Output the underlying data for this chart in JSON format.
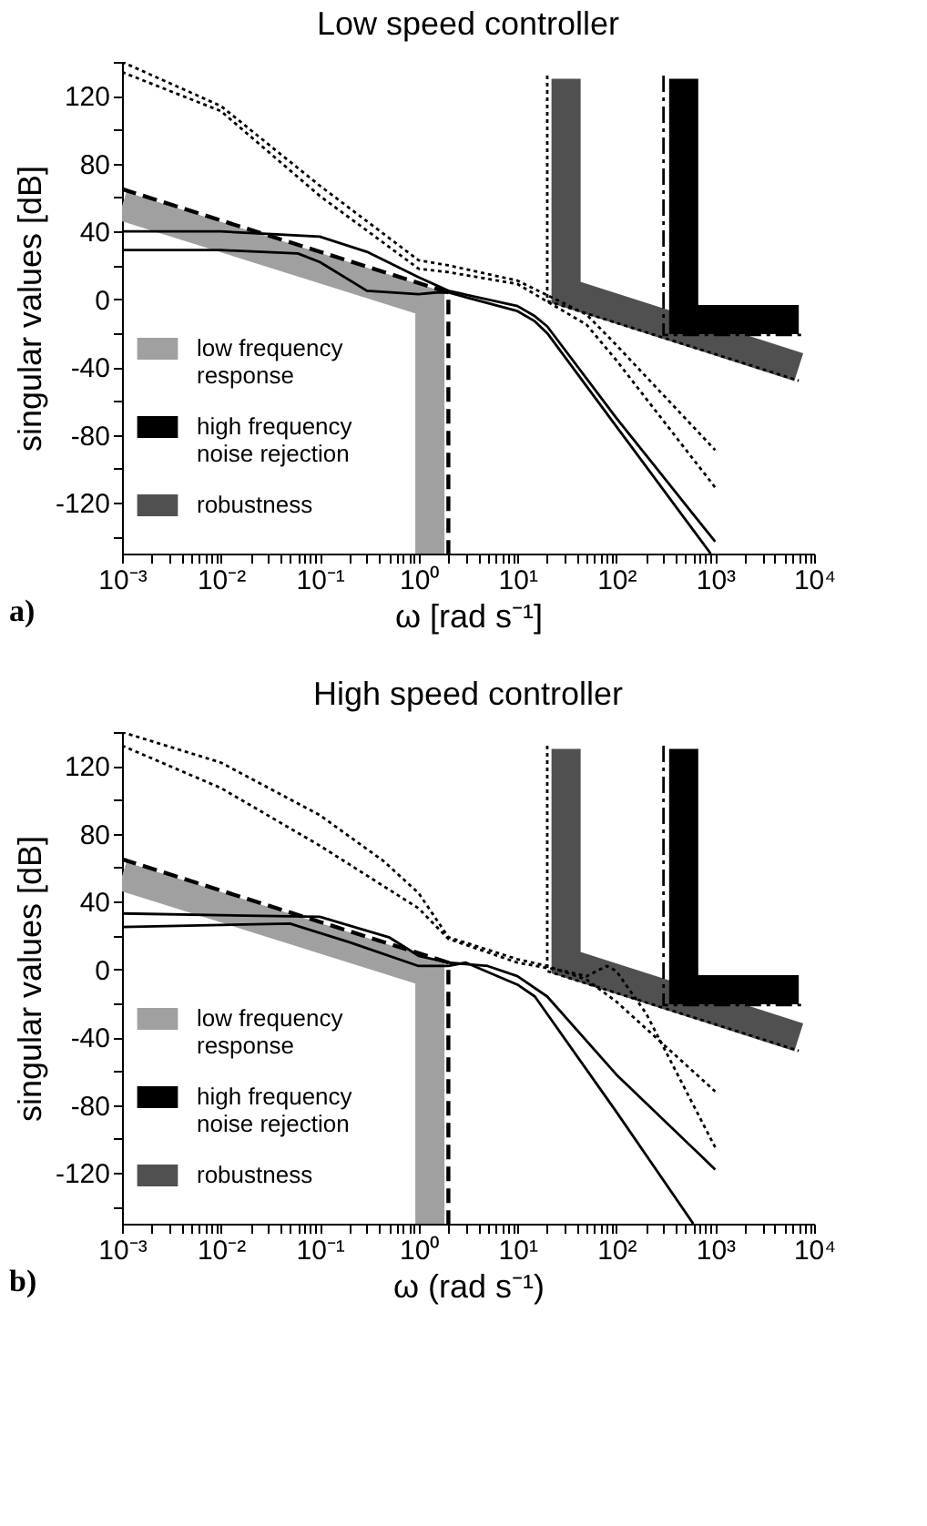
{
  "chart_data": [
    {
      "type": "line",
      "title": "Low speed controller",
      "xlabel": "ω  [rad s⁻¹]",
      "ylabel": "singular values  [dB]",
      "annotations": [
        "a)"
      ],
      "log": "x",
      "legend": "bottom left",
      "grid": false,
      "xlim": [
        0.001,
        10000
      ],
      "ylim": [
        -150,
        140
      ],
      "xticks": [
        {
          "value": 0.001,
          "label": "10⁻³"
        },
        {
          "value": 0.002,
          "label": null
        },
        {
          "value": 0.003,
          "label": null
        },
        {
          "value": 0.004,
          "label": null
        },
        {
          "value": 0.005,
          "label": null
        },
        {
          "value": 0.006,
          "label": null
        },
        {
          "value": 0.007,
          "label": null
        },
        {
          "value": 0.008,
          "label": null
        },
        {
          "value": 0.009,
          "label": null
        },
        {
          "value": 0.01,
          "label": "10⁻²"
        },
        {
          "value": 0.02,
          "label": null
        },
        {
          "value": 0.03,
          "label": null
        },
        {
          "value": 0.04,
          "label": null
        },
        {
          "value": 0.05,
          "label": null
        },
        {
          "value": 0.06,
          "label": null
        },
        {
          "value": 0.07,
          "label": null
        },
        {
          "value": 0.08,
          "label": null
        },
        {
          "value": 0.09,
          "label": null
        },
        {
          "value": 0.1,
          "label": "10⁻¹"
        },
        {
          "value": 0.2,
          "label": null
        },
        {
          "value": 0.3,
          "label": null
        },
        {
          "value": 0.4,
          "label": null
        },
        {
          "value": 0.5,
          "label": null
        },
        {
          "value": 0.6,
          "label": null
        },
        {
          "value": 0.7,
          "label": null
        },
        {
          "value": 0.8,
          "label": null
        },
        {
          "value": 0.9,
          "label": null
        },
        {
          "value": 1,
          "label": "10⁰"
        },
        {
          "value": 2,
          "label": null
        },
        {
          "value": 3,
          "label": null
        },
        {
          "value": 4,
          "label": null
        },
        {
          "value": 5,
          "label": null
        },
        {
          "value": 6,
          "label": null
        },
        {
          "value": 7,
          "label": null
        },
        {
          "value": 8,
          "label": null
        },
        {
          "value": 9,
          "label": null
        },
        {
          "value": 10,
          "label": "10¹"
        },
        {
          "value": 20,
          "label": null
        },
        {
          "value": 30,
          "label": null
        },
        {
          "value": 40,
          "label": null
        },
        {
          "value": 50,
          "label": null
        },
        {
          "value": 60,
          "label": null
        },
        {
          "value": 70,
          "label": null
        },
        {
          "value": 80,
          "label": null
        },
        {
          "value": 90,
          "label": null
        },
        {
          "value": 100,
          "label": "10²"
        },
        {
          "value": 200,
          "label": null
        },
        {
          "value": 300,
          "label": null
        },
        {
          "value": 400,
          "label": null
        },
        {
          "value": 500,
          "label": null
        },
        {
          "value": 600,
          "label": null
        },
        {
          "value": 700,
          "label": null
        },
        {
          "value": 800,
          "label": null
        },
        {
          "value": 900,
          "label": null
        },
        {
          "value": 1000,
          "label": "10³"
        },
        {
          "value": 2000,
          "label": null
        },
        {
          "value": 3000,
          "label": null
        },
        {
          "value": 4000,
          "label": null
        },
        {
          "value": 5000,
          "label": null
        },
        {
          "value": 6000,
          "label": null
        },
        {
          "value": 7000,
          "label": null
        },
        {
          "value": 8000,
          "label": null
        },
        {
          "value": 9000,
          "label": null
        },
        {
          "value": 10000,
          "label": "10⁴"
        }
      ],
      "yticks": [
        {
          "value": -140,
          "label": null
        },
        -120,
        {
          "value": -100,
          "label": null
        },
        -80,
        {
          "value": -60,
          "label": null
        },
        -40,
        {
          "value": -20,
          "label": null
        },
        0,
        {
          "value": 20,
          "label": null
        },
        40,
        {
          "value": 60,
          "label": null
        },
        80,
        {
          "value": 100,
          "label": null
        },
        120,
        {
          "value": 140,
          "label": null
        }
      ],
      "series": [
        {
          "name": "low frequency response",
          "color": "#a0a0a0",
          "x": [
            0.001,
            1.3,
            1.3
          ],
          "values": [
            55,
            -2,
            -150
          ]
        },
        {
          "name": "high frequency noise rejection",
          "color": "#000000",
          "x": [
            480,
            480,
            7000
          ],
          "values": [
            130,
            -12,
            -12
          ]
        },
        {
          "name": "robustness",
          "color": "#505050",
          "x": [
            31,
            31,
            7000
          ],
          "values": [
            130,
            4,
            -40
          ]
        },
        {
          "color": "#000000",
          "line_style": "dashed",
          "x": [
            0.001,
            2,
            2
          ],
          "values": [
            65,
            4,
            -150
          ]
        },
        {
          "color": "#000000",
          "line_style": "dashdot",
          "x": [
            300,
            300,
            8000
          ],
          "values": [
            132,
            -21,
            -21
          ]
        },
        {
          "color": "#000000",
          "line_style": "dotted",
          "x": [
            20,
            20,
            7000
          ],
          "values": [
            132,
            -1,
            -48
          ]
        },
        {
          "color": "#000000",
          "line_style": "solid",
          "x": [
            0.001,
            0.01,
            0.1,
            0.3,
            1,
            2,
            10,
            15,
            20,
            100,
            1000
          ],
          "values": [
            40,
            40,
            37,
            28,
            13,
            5,
            -4,
            -10,
            -16,
            -70,
            -143
          ]
        },
        {
          "color": "#000000",
          "line_style": "solid",
          "x": [
            0.001,
            0.01,
            0.06,
            0.1,
            0.3,
            1,
            1.5,
            2,
            10,
            15,
            20,
            100,
            900
          ],
          "values": [
            29,
            29,
            27,
            22,
            5,
            3,
            4,
            4,
            -7,
            -13,
            -20,
            -75,
            -150
          ]
        },
        {
          "color": "#000000",
          "line_style": "dotted",
          "x": [
            0.001,
            0.01,
            0.1,
            1,
            2,
            10,
            50,
            100,
            1000
          ],
          "values": [
            140,
            114,
            67,
            23,
            20,
            11,
            -9,
            -27,
            -89
          ]
        },
        {
          "color": "#000000",
          "line_style": "dotted",
          "x": [
            0.001,
            0.01,
            0.1,
            1,
            2,
            10,
            50,
            100,
            1000
          ],
          "values": [
            134,
            111,
            61,
            18,
            16,
            9,
            -15,
            -36,
            -111
          ]
        }
      ]
    },
    {
      "type": "line",
      "title": "High speed controller",
      "xlabel": "ω  (rad s⁻¹)",
      "ylabel": "singular values  [dB]",
      "annotations": [
        "b)"
      ],
      "log": "x",
      "legend": "bottom left",
      "grid": false,
      "xlim": [
        0.001,
        10000
      ],
      "ylim": [
        -150,
        140
      ],
      "xticks": [
        {
          "value": 0.001,
          "label": "10⁻³"
        },
        {
          "value": 0.002,
          "label": null
        },
        {
          "value": 0.003,
          "label": null
        },
        {
          "value": 0.004,
          "label": null
        },
        {
          "value": 0.005,
          "label": null
        },
        {
          "value": 0.006,
          "label": null
        },
        {
          "value": 0.007,
          "label": null
        },
        {
          "value": 0.008,
          "label": null
        },
        {
          "value": 0.009,
          "label": null
        },
        {
          "value": 0.01,
          "label": "10⁻²"
        },
        {
          "value": 0.02,
          "label": null
        },
        {
          "value": 0.03,
          "label": null
        },
        {
          "value": 0.04,
          "label": null
        },
        {
          "value": 0.05,
          "label": null
        },
        {
          "value": 0.06,
          "label": null
        },
        {
          "value": 0.07,
          "label": null
        },
        {
          "value": 0.08,
          "label": null
        },
        {
          "value": 0.09,
          "label": null
        },
        {
          "value": 0.1,
          "label": "10⁻¹"
        },
        {
          "value": 0.2,
          "label": null
        },
        {
          "value": 0.3,
          "label": null
        },
        {
          "value": 0.4,
          "label": null
        },
        {
          "value": 0.5,
          "label": null
        },
        {
          "value": 0.6,
          "label": null
        },
        {
          "value": 0.7,
          "label": null
        },
        {
          "value": 0.8,
          "label": null
        },
        {
          "value": 0.9,
          "label": null
        },
        {
          "value": 1,
          "label": "10⁰"
        },
        {
          "value": 2,
          "label": null
        },
        {
          "value": 3,
          "label": null
        },
        {
          "value": 4,
          "label": null
        },
        {
          "value": 5,
          "label": null
        },
        {
          "value": 6,
          "label": null
        },
        {
          "value": 7,
          "label": null
        },
        {
          "value": 8,
          "label": null
        },
        {
          "value": 9,
          "label": null
        },
        {
          "value": 10,
          "label": "10¹"
        },
        {
          "value": 20,
          "label": null
        },
        {
          "value": 30,
          "label": null
        },
        {
          "value": 40,
          "label": null
        },
        {
          "value": 50,
          "label": null
        },
        {
          "value": 60,
          "label": null
        },
        {
          "value": 70,
          "label": null
        },
        {
          "value": 80,
          "label": null
        },
        {
          "value": 90,
          "label": null
        },
        {
          "value": 100,
          "label": "10²"
        },
        {
          "value": 200,
          "label": null
        },
        {
          "value": 300,
          "label": null
        },
        {
          "value": 400,
          "label": null
        },
        {
          "value": 500,
          "label": null
        },
        {
          "value": 600,
          "label": null
        },
        {
          "value": 700,
          "label": null
        },
        {
          "value": 800,
          "label": null
        },
        {
          "value": 900,
          "label": null
        },
        {
          "value": 1000,
          "label": "10³"
        },
        {
          "value": 2000,
          "label": null
        },
        {
          "value": 3000,
          "label": null
        },
        {
          "value": 4000,
          "label": null
        },
        {
          "value": 5000,
          "label": null
        },
        {
          "value": 6000,
          "label": null
        },
        {
          "value": 7000,
          "label": null
        },
        {
          "value": 8000,
          "label": null
        },
        {
          "value": 9000,
          "label": null
        },
        {
          "value": 10000,
          "label": "10⁴"
        }
      ],
      "yticks": [
        {
          "value": -140,
          "label": null
        },
        -120,
        {
          "value": -100,
          "label": null
        },
        -80,
        {
          "value": -60,
          "label": null
        },
        -40,
        {
          "value": -20,
          "label": null
        },
        0,
        {
          "value": 20,
          "label": null
        },
        40,
        {
          "value": 60,
          "label": null
        },
        80,
        {
          "value": 100,
          "label": null
        },
        120,
        {
          "value": 140,
          "label": null
        }
      ],
      "series": [
        {
          "name": "low frequency response",
          "color": "#a0a0a0",
          "x": [
            0.001,
            1.3,
            1.3
          ],
          "values": [
            55,
            -2,
            -150
          ]
        },
        {
          "name": "high frequency noise rejection",
          "color": "#000000",
          "x": [
            480,
            480,
            7000
          ],
          "values": [
            130,
            -12,
            -12
          ]
        },
        {
          "name": "robustness",
          "color": "#505050",
          "x": [
            31,
            31,
            7000
          ],
          "values": [
            130,
            4,
            -40
          ]
        },
        {
          "color": "#000000",
          "line_style": "dashed",
          "x": [
            0.001,
            2,
            2
          ],
          "values": [
            65,
            4,
            -150
          ]
        },
        {
          "color": "#000000",
          "line_style": "dashdot",
          "x": [
            300,
            300,
            8000
          ],
          "values": [
            132,
            -21,
            -21
          ]
        },
        {
          "color": "#000000",
          "line_style": "dotted",
          "x": [
            20,
            20,
            7000
          ],
          "values": [
            132,
            -1,
            -48
          ]
        },
        {
          "color": "#000000",
          "line_style": "solid",
          "x": [
            0.001,
            0.1,
            0.5,
            1,
            2,
            5,
            10,
            20,
            100,
            1000
          ],
          "values": [
            33,
            31,
            19,
            8,
            4,
            2,
            -4,
            -16,
            -62,
            -118
          ]
        },
        {
          "color": "#000000",
          "line_style": "solid",
          "x": [
            0.001,
            0.05,
            0.2,
            1,
            2,
            3,
            10,
            15,
            100,
            600
          ],
          "values": [
            25,
            27,
            16,
            2,
            2,
            4,
            -9,
            -16,
            -84,
            -150
          ]
        },
        {
          "color": "#000000",
          "line_style": "dotted",
          "x": [
            0.001,
            0.01,
            0.1,
            0.44,
            1,
            2,
            10,
            20,
            50,
            100,
            1000
          ],
          "values": [
            140,
            122,
            91,
            64,
            45,
            19,
            6,
            2,
            -6,
            -19,
            -72
          ]
        },
        {
          "color": "#000000",
          "line_style": "dotted",
          "x": [
            0.001,
            0.01,
            0.1,
            1,
            2,
            10,
            30,
            50,
            80,
            100,
            200,
            1000
          ],
          "values": [
            132,
            107,
            73,
            36,
            18,
            4,
            -1,
            -4,
            2,
            -1,
            -26,
            -105
          ]
        }
      ]
    }
  ]
}
